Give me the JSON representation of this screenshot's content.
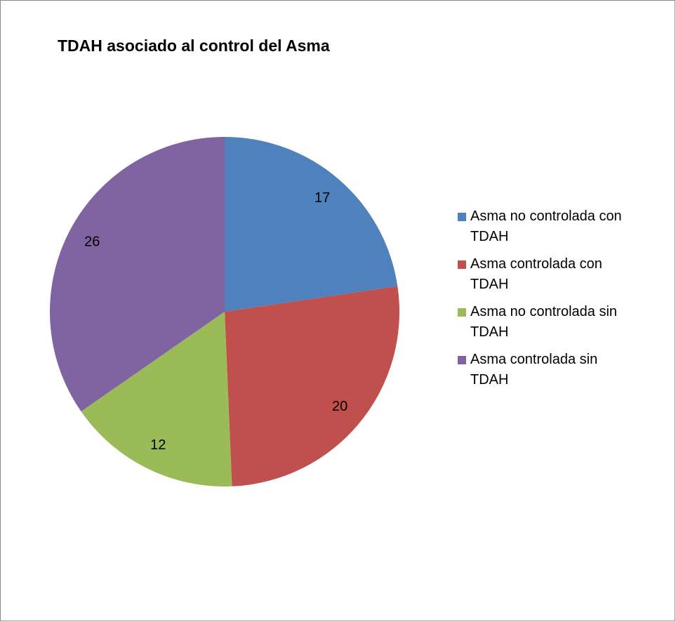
{
  "chart_data": {
    "type": "pie",
    "title": "TDAH asociado al control del Asma",
    "categories": [
      "Asma no controlada con TDAH",
      "Asma controlada con TDAH",
      "Asma no controlada sin TDAH",
      "Asma controlada sin TDAH"
    ],
    "values": [
      17,
      20,
      12,
      26
    ],
    "colors": [
      "#4f81bd",
      "#c0504d",
      "#9bbb59",
      "#8064a2"
    ],
    "legend": "right"
  }
}
